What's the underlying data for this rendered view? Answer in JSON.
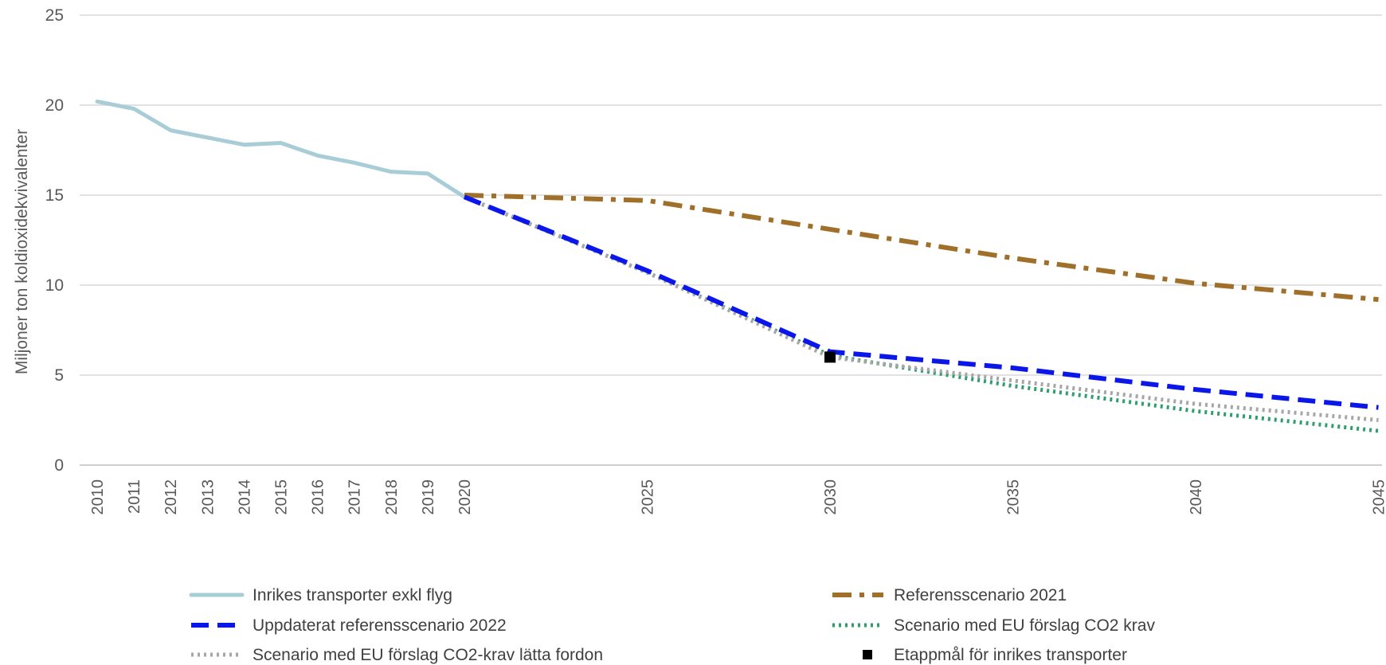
{
  "chart_data": {
    "type": "line",
    "title": "",
    "xlabel": "",
    "ylabel": "Miljoner ton koldioxidekvivalenter",
    "ylim": [
      0,
      25
    ],
    "yticks": [
      0,
      5,
      10,
      15,
      20,
      25
    ],
    "xlim": [
      2010,
      2045
    ],
    "xticks": [
      2010,
      2011,
      2012,
      2013,
      2014,
      2015,
      2016,
      2017,
      2018,
      2019,
      2020,
      2025,
      2030,
      2035,
      2040,
      2045
    ],
    "grid": true,
    "legend_position": "bottom",
    "series": [
      {
        "name": "Inrikes transporter exkl flyg",
        "color": "#a9cdd6",
        "style": "solid",
        "x": [
          2010,
          2011,
          2012,
          2013,
          2014,
          2015,
          2016,
          2017,
          2018,
          2019,
          2020
        ],
        "y": [
          20.2,
          19.8,
          18.6,
          18.2,
          17.8,
          17.9,
          17.2,
          16.8,
          16.3,
          16.2,
          14.9
        ]
      },
      {
        "name": "Referensscenario 2021",
        "color": "#a0702a",
        "style": "dashdot",
        "x": [
          2020,
          2025,
          2030,
          2035,
          2040,
          2045
        ],
        "y": [
          15.0,
          14.7,
          13.1,
          11.5,
          10.1,
          9.2
        ]
      },
      {
        "name": "Uppdaterat referensscenario 2022",
        "color": "#0a17e8",
        "style": "dashed",
        "x": [
          2020,
          2025,
          2030,
          2035,
          2040,
          2045
        ],
        "y": [
          14.9,
          10.8,
          6.3,
          5.4,
          4.2,
          3.2
        ]
      },
      {
        "name": "Scenario med EU förslag CO2 krav",
        "color": "#2e9e6e",
        "style": "dotted",
        "x": [
          2020,
          2025,
          2030,
          2035,
          2040,
          2045
        ],
        "y": [
          14.9,
          10.7,
          6.1,
          4.4,
          3.0,
          1.9
        ]
      },
      {
        "name": "Scenario med EU förslag CO2-krav lätta fordon",
        "color": "#a6a6a6",
        "style": "dotted",
        "x": [
          2020,
          2025,
          2030,
          2035,
          2040,
          2045
        ],
        "y": [
          14.9,
          10.7,
          6.0,
          4.7,
          3.4,
          2.5
        ]
      },
      {
        "name": "Etappmål för inrikes transporter",
        "color": "#000000",
        "style": "marker",
        "x": [
          2030
        ],
        "y": [
          6.0
        ]
      }
    ]
  }
}
